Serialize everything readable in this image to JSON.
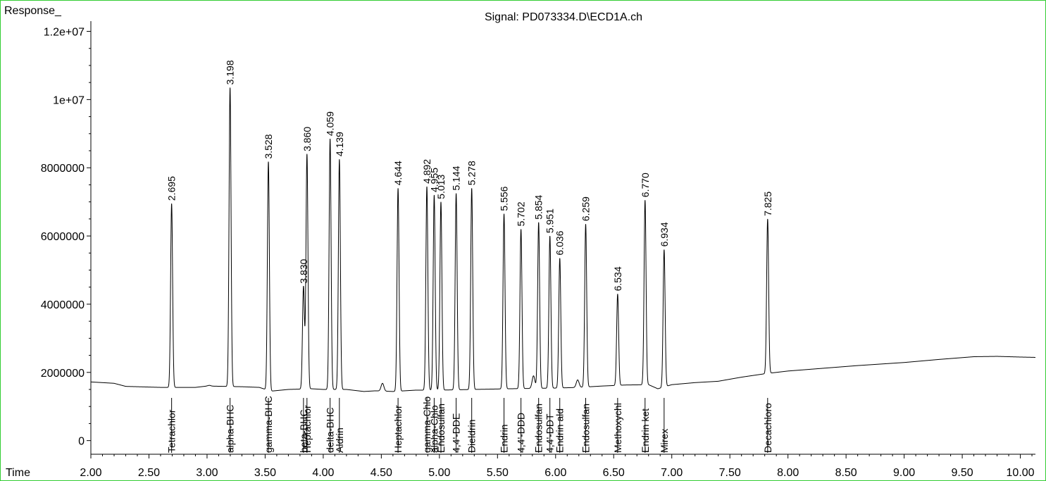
{
  "chart_data": {
    "type": "line",
    "title": "Signal: PD073334.D\\ECD1A.ch",
    "ylabel": "Response_",
    "xlabel": "Time",
    "xlim": [
      2.0,
      10.13
    ],
    "ylim": [
      -400000,
      12300000
    ],
    "xticks": [
      "2.00",
      "2.50",
      "3.00",
      "3.50",
      "4.00",
      "4.50",
      "5.00",
      "5.50",
      "6.00",
      "6.50",
      "7.00",
      "7.50",
      "8.00",
      "8.50",
      "9.00",
      "9.50",
      "10.00"
    ],
    "yticks": [
      "0",
      "2000000",
      "4000000",
      "6000000",
      "8000000",
      "1e+07",
      "1.2e+07"
    ],
    "baseline": [
      [
        2.0,
        1720000
      ],
      [
        2.2,
        1680000
      ],
      [
        2.3,
        1590000
      ],
      [
        2.6,
        1560000
      ],
      [
        2.9,
        1560000
      ],
      [
        3.0,
        1600000
      ],
      [
        3.3,
        1580000
      ],
      [
        3.45,
        1560000
      ],
      [
        3.55,
        1450000
      ],
      [
        3.7,
        1500000
      ],
      [
        3.9,
        1520000
      ],
      [
        4.0,
        1500000
      ],
      [
        4.2,
        1500000
      ],
      [
        4.35,
        1440000
      ],
      [
        4.45,
        1460000
      ],
      [
        4.6,
        1440000
      ],
      [
        4.8,
        1480000
      ],
      [
        5.0,
        1480000
      ],
      [
        5.3,
        1500000
      ],
      [
        5.6,
        1520000
      ],
      [
        5.8,
        1530000
      ],
      [
        6.0,
        1540000
      ],
      [
        6.2,
        1560000
      ],
      [
        6.4,
        1600000
      ],
      [
        6.6,
        1630000
      ],
      [
        6.8,
        1640000
      ],
      [
        6.88,
        1520000
      ],
      [
        7.0,
        1640000
      ],
      [
        7.2,
        1700000
      ],
      [
        7.4,
        1740000
      ],
      [
        7.6,
        1860000
      ],
      [
        7.8,
        1960000
      ],
      [
        8.0,
        2040000
      ],
      [
        8.3,
        2120000
      ],
      [
        8.6,
        2200000
      ],
      [
        9.0,
        2290000
      ],
      [
        9.3,
        2380000
      ],
      [
        9.6,
        2460000
      ],
      [
        9.8,
        2470000
      ],
      [
        10.0,
        2450000
      ],
      [
        10.13,
        2440000
      ]
    ],
    "small_peaks": [
      [
        3.02,
        1620000
      ],
      [
        4.51,
        1680000
      ],
      [
        5.81,
        1900000
      ],
      [
        6.19,
        1780000
      ]
    ],
    "peaks": [
      {
        "rt": "2.695",
        "height": 6950000,
        "compound": "Tetrachlor"
      },
      {
        "rt": "3.198",
        "height": 10350000,
        "compound": "alpha-BHC"
      },
      {
        "rt": "3.528",
        "height": 8180000,
        "compound": "gamma-BHC"
      },
      {
        "rt": "3.830",
        "height": 4520000,
        "compound": "beta-BHC"
      },
      {
        "rt": "3.860",
        "height": 8400000,
        "compound": "Heptachlor"
      },
      {
        "rt": "4.059",
        "height": 8850000,
        "compound": "delta-BHC"
      },
      {
        "rt": "4.139",
        "height": 8250000,
        "compound": "Aldrin"
      },
      {
        "rt": "4.644",
        "height": 7400000,
        "compound": "Heptachlor"
      },
      {
        "rt": "4.892",
        "height": 7450000,
        "compound": "gamma-Chlo"
      },
      {
        "rt": "4.955",
        "height": 7200000,
        "compound": "alpha-Chlo"
      },
      {
        "rt": "5.013",
        "height": 7000000,
        "compound": "Endosulfan"
      },
      {
        "rt": "5.144",
        "height": 7250000,
        "compound": "4,4'-DDE"
      },
      {
        "rt": "5.278",
        "height": 7400000,
        "compound": "Dieldrin"
      },
      {
        "rt": "5.556",
        "height": 6650000,
        "compound": "Endrin"
      },
      {
        "rt": "5.702",
        "height": 6200000,
        "compound": "4,4'-DDD"
      },
      {
        "rt": "5.854",
        "height": 6400000,
        "compound": "Endosulfan"
      },
      {
        "rt": "5.951",
        "height": 6000000,
        "compound": "4,4'-DDT"
      },
      {
        "rt": "6.036",
        "height": 5350000,
        "compound": "Endrin ald"
      },
      {
        "rt": "6.259",
        "height": 6350000,
        "compound": "Endosulfan"
      },
      {
        "rt": "6.534",
        "height": 4300000,
        "compound": "Methoxychl"
      },
      {
        "rt": "6.770",
        "height": 7050000,
        "compound": "Endrin ket"
      },
      {
        "rt": "6.934",
        "height": 5600000,
        "compound": "Mirex"
      },
      {
        "rt": "7.825",
        "height": 6500000,
        "compound": "Decachloro"
      }
    ]
  }
}
